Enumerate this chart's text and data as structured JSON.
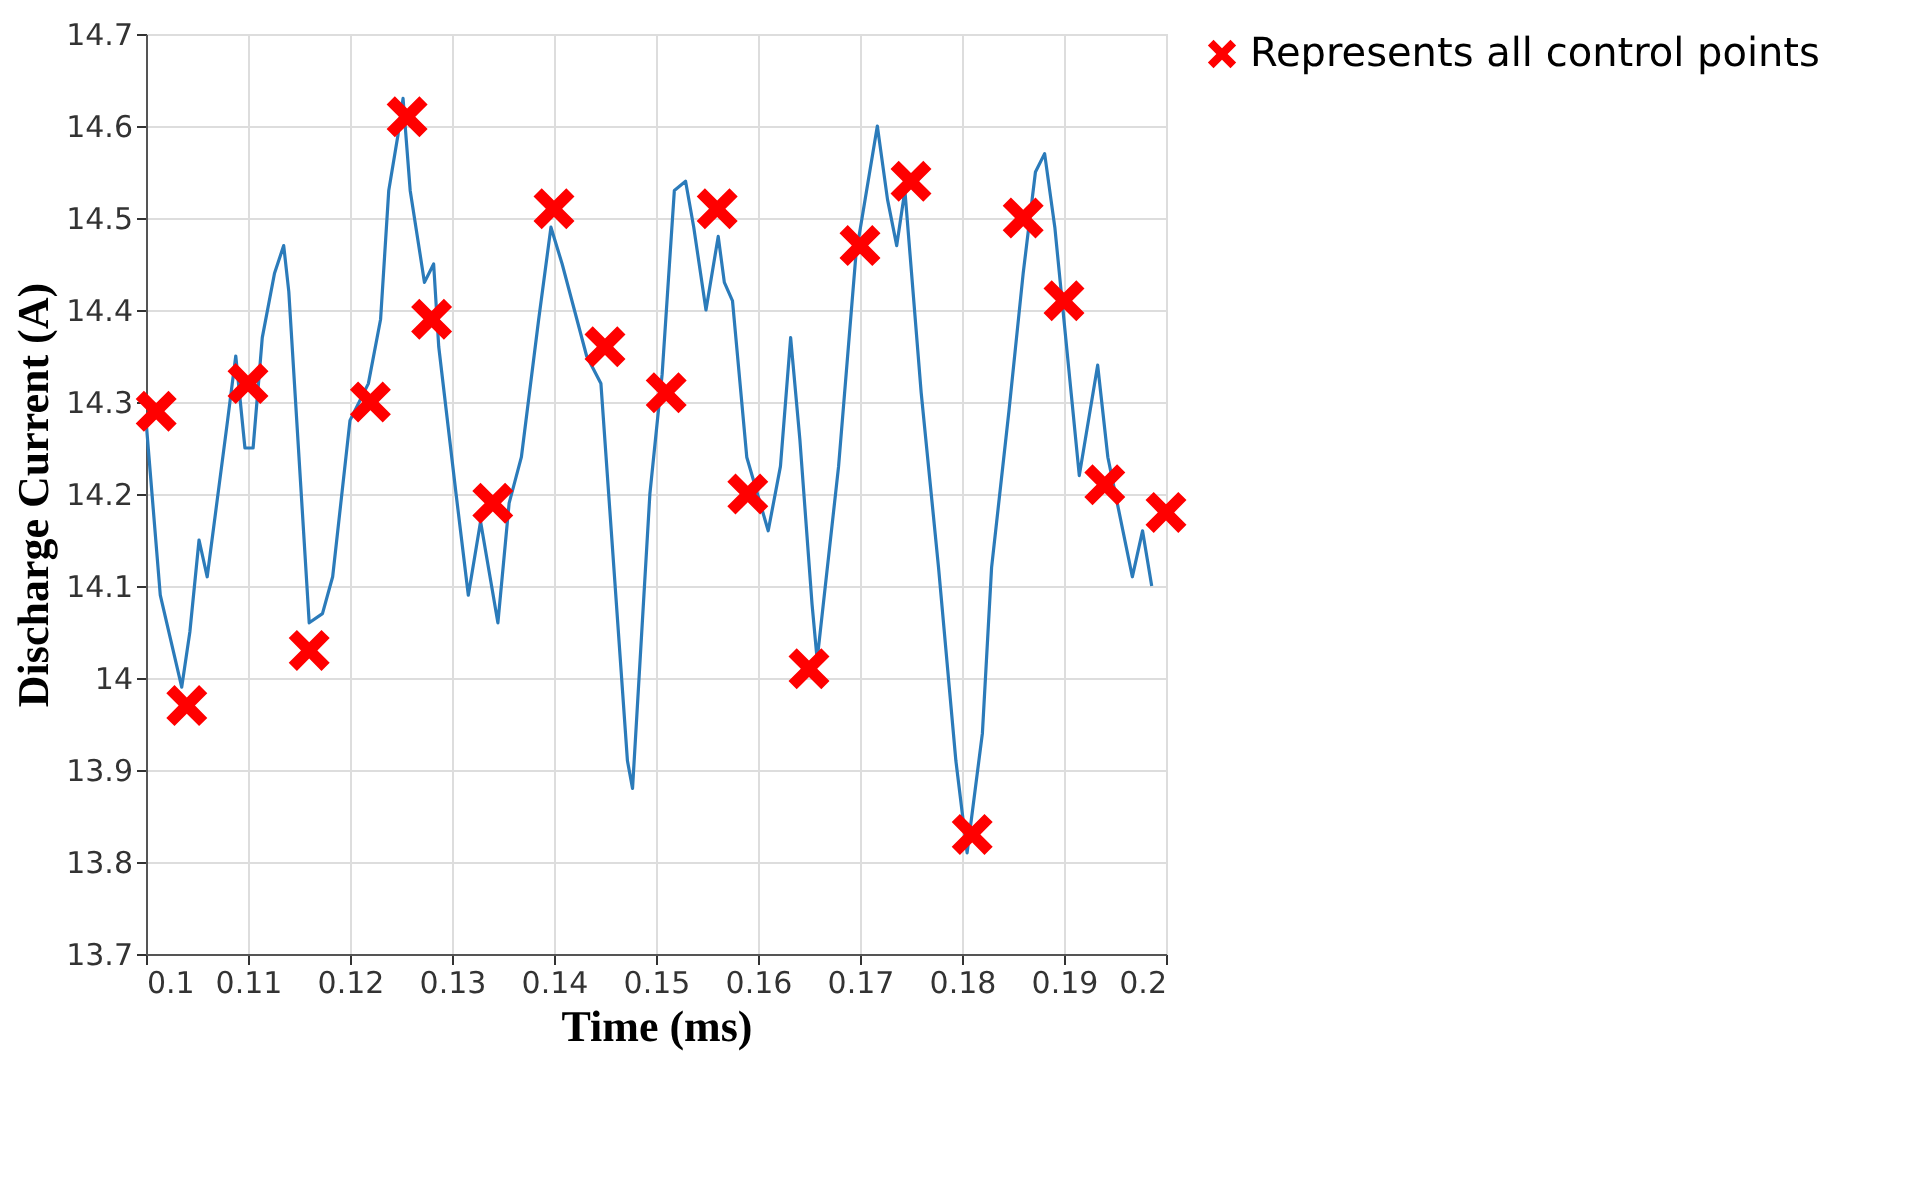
{
  "chart_data": {
    "type": "line",
    "xlabel": "Time (ms)",
    "ylabel": "Discharge Current (A)",
    "xlim": [
      0.1,
      0.2
    ],
    "xticks": [
      0.1,
      0.11,
      0.12,
      0.13,
      0.14,
      0.15,
      0.16,
      0.17,
      0.18,
      0.19,
      0.2
    ],
    "ylim": [
      13.7,
      14.7
    ],
    "yticks": [
      13.7,
      13.8,
      13.9,
      14,
      14.1,
      14.2,
      14.3,
      14.4,
      14.5,
      14.6,
      14.7
    ],
    "grid": true,
    "legend": "top right",
    "series": [
      {
        "color": "#2b7bba",
        "marker": "none",
        "line_style": "solid",
        "x": [
          0.1,
          0.1014,
          0.1035,
          0.1043,
          0.1052,
          0.106,
          0.108,
          0.1088,
          0.1097,
          0.1105,
          0.1114,
          0.1126,
          0.1135,
          0.114,
          0.116,
          0.1173,
          0.1183,
          0.12,
          0.1218,
          0.123,
          0.1238,
          0.1247,
          0.1252,
          0.1259,
          0.1273,
          0.1282,
          0.1287,
          0.1304,
          0.1316,
          0.1328,
          0.1345,
          0.1356,
          0.1368,
          0.1385,
          0.1397,
          0.1408,
          0.1432,
          0.1446,
          0.1472,
          0.1477,
          0.1494,
          0.1506,
          0.1518,
          0.1529,
          0.1537,
          0.1549,
          0.1561,
          0.1567,
          0.1575,
          0.1589,
          0.161,
          0.1622,
          0.1632,
          0.1641,
          0.1653,
          0.1658,
          0.1679,
          0.1696,
          0.1717,
          0.1727,
          0.1736,
          0.1744,
          0.176,
          0.1777,
          0.1794,
          0.1805,
          0.182,
          0.1829,
          0.1846,
          0.186,
          0.1872,
          0.1881,
          0.1891,
          0.1907,
          0.1915,
          0.1933,
          0.1943,
          0.1967,
          0.1977,
          0.1986
        ],
        "values": [
          14.28,
          14.09,
          13.99,
          14.05,
          14.15,
          14.11,
          14.28,
          14.35,
          14.25,
          14.25,
          14.37,
          14.44,
          14.47,
          14.42,
          14.06,
          14.07,
          14.11,
          14.28,
          14.32,
          14.39,
          14.53,
          14.59,
          14.63,
          14.53,
          14.43,
          14.45,
          14.36,
          14.2,
          14.09,
          14.17,
          14.06,
          14.19,
          14.24,
          14.39,
          14.49,
          14.45,
          14.35,
          14.32,
          13.91,
          13.88,
          14.2,
          14.33,
          14.53,
          14.54,
          14.49,
          14.4,
          14.48,
          14.43,
          14.41,
          14.24,
          14.16,
          14.23,
          14.37,
          14.26,
          14.08,
          14.02,
          14.23,
          14.46,
          14.6,
          14.52,
          14.47,
          14.53,
          14.31,
          14.12,
          13.91,
          13.81,
          13.94,
          14.12,
          14.29,
          14.44,
          14.55,
          14.57,
          14.49,
          14.31,
          14.22,
          14.34,
          14.24,
          14.11,
          14.16,
          14.1
        ]
      },
      {
        "type": "scatter",
        "name": "Represents all control points",
        "color": "#ff0000",
        "marker": "cross",
        "x": [
          0.101,
          0.104,
          0.11,
          0.116,
          0.122,
          0.1256,
          0.128,
          0.134,
          0.14,
          0.145,
          0.151,
          0.156,
          0.159,
          0.165,
          0.17,
          0.175,
          0.181,
          0.186,
          0.19,
          0.194,
          0.2
        ],
        "values": [
          14.29,
          13.97,
          14.32,
          14.03,
          14.3,
          14.61,
          14.39,
          14.19,
          14.51,
          14.36,
          14.31,
          14.51,
          14.2,
          14.01,
          14.47,
          14.54,
          13.83,
          14.5,
          14.41,
          14.21,
          14.18
        ]
      }
    ]
  }
}
